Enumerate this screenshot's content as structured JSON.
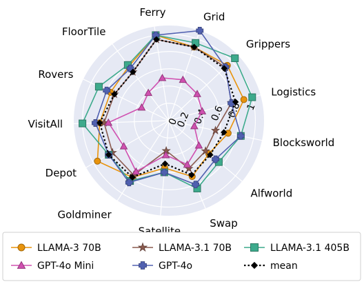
{
  "chart_data": {
    "type": "radar",
    "categories": [
      "Blocksworld",
      "Logistics",
      "Grippers",
      "Grid",
      "Ferry",
      "FloorTile",
      "Rovers",
      "VisitAll",
      "Depot",
      "Goldminer",
      "Satellite",
      "Swap",
      "Alfworld"
    ],
    "radial_ticks": [
      "0",
      "0.2",
      "0.4",
      "0.6",
      "0.8",
      "1"
    ],
    "rlim": [
      0,
      1.1
    ],
    "grid": true,
    "legend_position": "bottom",
    "series": [
      {
        "name": "LLAMA-3 70B",
        "color": "#e8930c",
        "marker": "circle",
        "line": "solid",
        "values": [
          0.7,
          0.9,
          0.93,
          0.9,
          1.0,
          0.78,
          0.75,
          0.8,
          0.95,
          0.78,
          0.55,
          0.7,
          0.6
        ]
      },
      {
        "name": "LLAMA-3.1 70B",
        "color": "#8a5a4e",
        "marker": "star",
        "line": "solid",
        "values": [
          0.55,
          0.75,
          0.9,
          0.9,
          0.95,
          0.7,
          0.7,
          0.75,
          0.75,
          0.75,
          0.35,
          0.6,
          0.55
        ]
      },
      {
        "name": "LLAMA-3.1 405B",
        "color": "#3daa8c",
        "marker": "square",
        "line": "solid",
        "values": [
          0.85,
          1.0,
          1.05,
          0.95,
          1.0,
          0.8,
          0.9,
          1.0,
          0.8,
          0.83,
          0.6,
          0.85,
          0.75
        ]
      },
      {
        "name": "GPT-4o Mini",
        "color": "#d050b0",
        "marker": "triangle",
        "line": "solid",
        "values": [
          0.3,
          0.4,
          0.45,
          0.5,
          0.5,
          0.4,
          0.35,
          0.7,
          0.6,
          0.7,
          0.4,
          0.55,
          0.45
        ]
      },
      {
        "name": "GPT-4o",
        "color": "#5060b0",
        "marker": "plus",
        "line": "solid",
        "values": [
          0.85,
          0.75,
          0.9,
          1.1,
          1.0,
          0.75,
          0.8,
          0.85,
          0.8,
          0.85,
          0.6,
          0.8,
          0.7
        ]
      },
      {
        "name": "mean",
        "color": "#000000",
        "marker": "diamond",
        "line": "dotted",
        "values": [
          0.65,
          0.8,
          0.88,
          0.9,
          0.95,
          0.7,
          0.7,
          0.8,
          0.8,
          0.78,
          0.5,
          0.68,
          0.62
        ]
      }
    ]
  }
}
